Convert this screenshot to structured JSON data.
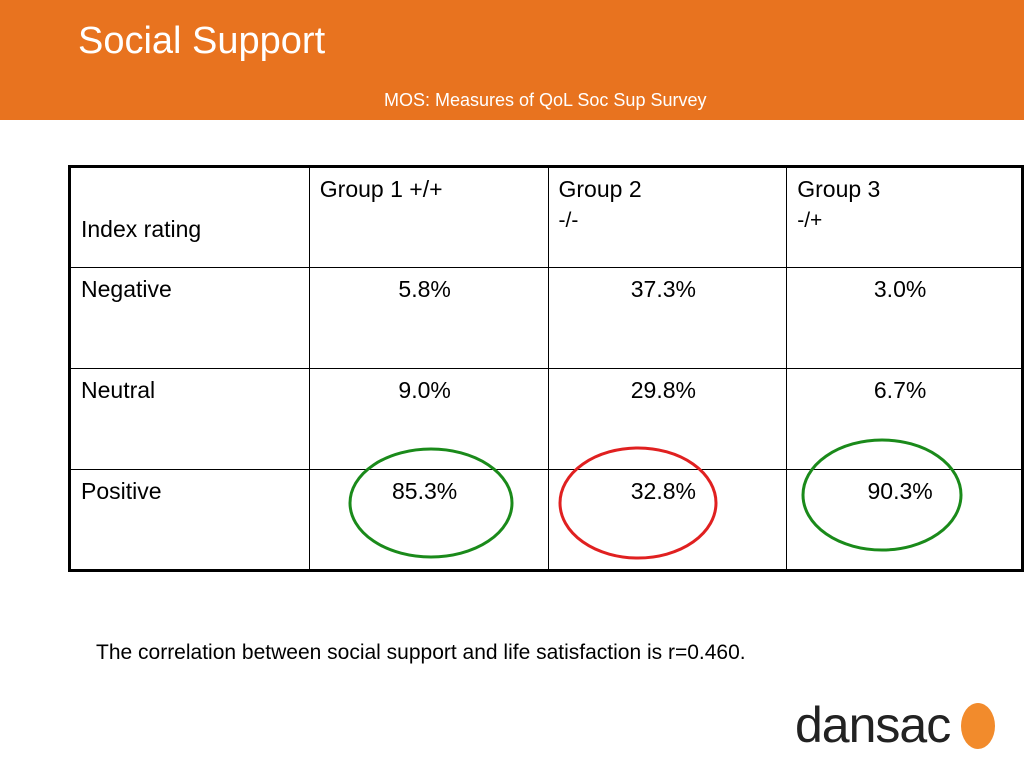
{
  "slide": {
    "title": "Social Support",
    "subtitle": "MOS: Measures of QoL Soc Sup Survey"
  },
  "table": {
    "header": {
      "index_label": "Index rating",
      "groups": [
        {
          "line1": "Group 1 +/+",
          "line2": ""
        },
        {
          "line1": "Group 2",
          "line2": "-/-"
        },
        {
          "line1": "Group 3",
          "line2": "-/+"
        }
      ]
    },
    "rows": [
      {
        "label": "Negative",
        "values": [
          "5.8%",
          "37.3%",
          "3.0%"
        ]
      },
      {
        "label": "Neutral",
        "values": [
          "9.0%",
          "29.8%",
          "6.7%"
        ]
      },
      {
        "label": "Positive",
        "values": [
          "85.3%",
          "32.8%",
          "90.3%"
        ]
      }
    ]
  },
  "highlights": {
    "group1_color": "#1a8a1a",
    "group2_color": "#e02020",
    "group3_color": "#1a8a1a"
  },
  "footnote": "The correlation between social support and life satisfaction is r=0.460.",
  "logo": {
    "text": "dansac",
    "dot_color": "#f28b2c"
  }
}
